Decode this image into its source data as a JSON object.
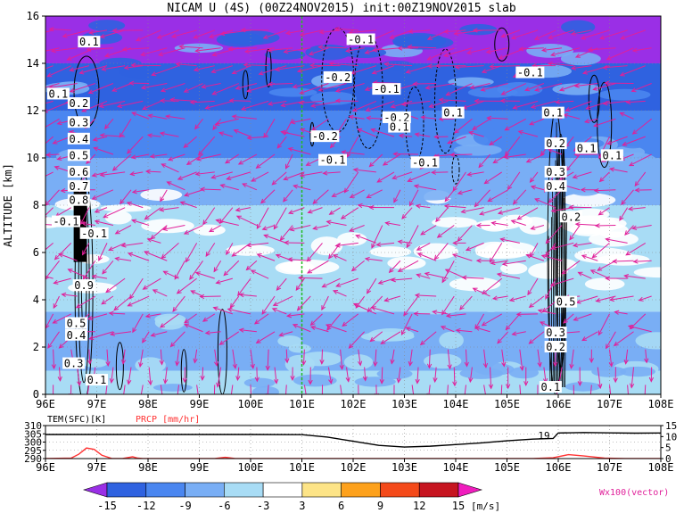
{
  "chart_data": [
    {
      "type": "heatmap",
      "title": "NICAM U (4S) (00Z24NOV2015) init:00Z19NOV2015 slab",
      "ylabel": "ALTITUDE [km]",
      "xlim": [
        96,
        108
      ],
      "ylim": [
        0,
        16
      ],
      "x_ticks": [
        "96E",
        "97E",
        "98E",
        "99E",
        "100E",
        "101E",
        "102E",
        "103E",
        "104E",
        "105E",
        "106E",
        "107E",
        "108E"
      ],
      "y_ticks": [
        "0",
        "2",
        "4",
        "6",
        "8",
        "10",
        "12",
        "14",
        "16"
      ],
      "grid": true,
      "marker_line_x": 101.0,
      "shaded_field": "U [m/s]",
      "bands": [
        {
          "z_from": 0.0,
          "z_to": 1.0,
          "level": -3
        },
        {
          "z_from": 1.0,
          "z_to": 3.5,
          "level": -6
        },
        {
          "z_from": 3.5,
          "z_to": 6.0,
          "level": -3
        },
        {
          "z_from": 6.0,
          "z_to": 8.0,
          "level": -3
        },
        {
          "z_from": 8.0,
          "z_to": 10.0,
          "level": -6
        },
        {
          "z_from": 10.0,
          "z_to": 12.0,
          "level": -9
        },
        {
          "z_from": 12.0,
          "z_to": 14.0,
          "level": -12
        },
        {
          "z_from": 14.0,
          "z_to": 16.0,
          "level": -15
        }
      ],
      "contour_labels": [
        {
          "x": 96.85,
          "z": 14.9,
          "text": "0.1"
        },
        {
          "x": 96.25,
          "z": 12.7,
          "text": "0.1"
        },
        {
          "x": 96.65,
          "z": 12.3,
          "text": "0.2"
        },
        {
          "x": 96.65,
          "z": 11.5,
          "text": "0.3"
        },
        {
          "x": 96.65,
          "z": 10.8,
          "text": "0.4"
        },
        {
          "x": 96.65,
          "z": 10.1,
          "text": "0.5"
        },
        {
          "x": 96.65,
          "z": 9.4,
          "text": "0.6"
        },
        {
          "x": 96.65,
          "z": 8.8,
          "text": "0.7"
        },
        {
          "x": 96.65,
          "z": 8.2,
          "text": "0.8"
        },
        {
          "x": 96.4,
          "z": 7.3,
          "text": "-0.1"
        },
        {
          "x": 96.95,
          "z": 6.8,
          "text": "-0.1"
        },
        {
          "x": 96.75,
          "z": 4.6,
          "text": "0.9"
        },
        {
          "x": 96.6,
          "z": 3.0,
          "text": "0.5"
        },
        {
          "x": 96.6,
          "z": 2.5,
          "text": "0.4"
        },
        {
          "x": 96.55,
          "z": 1.3,
          "text": "0.3"
        },
        {
          "x": 97.0,
          "z": 0.6,
          "text": "0.1"
        },
        {
          "x": 102.15,
          "z": 15.0,
          "text": "-0.1"
        },
        {
          "x": 101.7,
          "z": 13.4,
          "text": "-0.2"
        },
        {
          "x": 102.65,
          "z": 12.9,
          "text": "-0.1"
        },
        {
          "x": 102.85,
          "z": 11.7,
          "text": "-0.2"
        },
        {
          "x": 102.9,
          "z": 11.3,
          "text": "0.1"
        },
        {
          "x": 103.95,
          "z": 11.9,
          "text": "0.1"
        },
        {
          "x": 101.45,
          "z": 10.9,
          "text": "-0.2"
        },
        {
          "x": 101.6,
          "z": 9.9,
          "text": "-0.1"
        },
        {
          "x": 103.4,
          "z": 9.8,
          "text": "-0.1"
        },
        {
          "x": 105.45,
          "z": 13.6,
          "text": "-0.1"
        },
        {
          "x": 105.9,
          "z": 11.9,
          "text": "0.1"
        },
        {
          "x": 105.95,
          "z": 10.6,
          "text": "0.2"
        },
        {
          "x": 106.55,
          "z": 10.4,
          "text": "0.1"
        },
        {
          "x": 107.05,
          "z": 10.1,
          "text": "0.1"
        },
        {
          "x": 105.95,
          "z": 9.4,
          "text": "0.3"
        },
        {
          "x": 105.95,
          "z": 8.8,
          "text": "0.4"
        },
        {
          "x": 106.25,
          "z": 7.5,
          "text": "0.2"
        },
        {
          "x": 106.15,
          "z": 3.9,
          "text": "0.5"
        },
        {
          "x": 105.95,
          "z": 2.6,
          "text": "0.3"
        },
        {
          "x": 105.95,
          "z": 2.0,
          "text": "0.2"
        },
        {
          "x": 105.85,
          "z": 0.3,
          "text": "0.1"
        }
      ],
      "vectors_label": "Wx100(vector)"
    },
    {
      "type": "line",
      "legend_labels": {
        "tem": "TEM(SFC)[K]",
        "prcp": "PRCP [mm/hr]"
      },
      "xlim": [
        96,
        108
      ],
      "left_axis": {
        "ticks": [
          "290",
          "295",
          "300",
          "305",
          "310"
        ],
        "ylim": [
          290,
          310
        ]
      },
      "right_axis": {
        "ticks": [
          "0",
          "5",
          "10",
          "15"
        ],
        "ylim": [
          0,
          15
        ]
      },
      "x_ticks": [
        "96E",
        "97E",
        "98E",
        "99E",
        "100E",
        "101E",
        "102E",
        "103E",
        "104E",
        "105E",
        "106E",
        "107E",
        "108E"
      ],
      "annotation": {
        "x": 105.85,
        "text": "19"
      },
      "series": [
        {
          "key": "tem",
          "color": "#000000",
          "x": [
            96,
            97,
            98,
            99,
            100,
            101,
            101.5,
            102,
            102.5,
            103,
            103.5,
            104,
            104.5,
            105,
            105.5,
            105.9,
            106,
            106.5,
            107,
            107.5,
            108
          ],
          "values": [
            304.6,
            304.6,
            304.6,
            304.6,
            304.6,
            304.5,
            303.0,
            300.5,
            298.0,
            297.0,
            297.5,
            298.5,
            299.5,
            300.8,
            301.8,
            302.2,
            305.5,
            305.8,
            305.6,
            305.4,
            305.5
          ]
        },
        {
          "key": "prcp",
          "color": "#ff3333",
          "x": [
            96,
            96.5,
            96.65,
            96.8,
            96.95,
            97.1,
            97.3,
            97.5,
            97.7,
            97.8,
            97.9,
            98.5,
            99.3,
            99.5,
            99.7,
            100,
            103,
            105.5,
            105.9,
            106.2,
            106.5,
            106.9,
            107.3,
            108
          ],
          "values": [
            0,
            0.2,
            2.0,
            4.8,
            4.2,
            1.5,
            0,
            0,
            0.8,
            0.2,
            0,
            0,
            0,
            0.6,
            0,
            0,
            0,
            0,
            0.4,
            1.8,
            1.2,
            0.2,
            0,
            0
          ]
        }
      ]
    },
    {
      "type": "colorbar",
      "labels": [
        "-15",
        "-12",
        "-9",
        "-6",
        "-3",
        "3",
        "6",
        "9",
        "12",
        "15"
      ],
      "unit": "[m/s]",
      "colors": [
        "#9a2fe6",
        "#2f62e0",
        "#4a86f0",
        "#79aef5",
        "#a8dcf5",
        "#ffffff",
        "#fde487",
        "#fda11c",
        "#f44a1a",
        "#c61520",
        "#f01dbe"
      ]
    }
  ]
}
